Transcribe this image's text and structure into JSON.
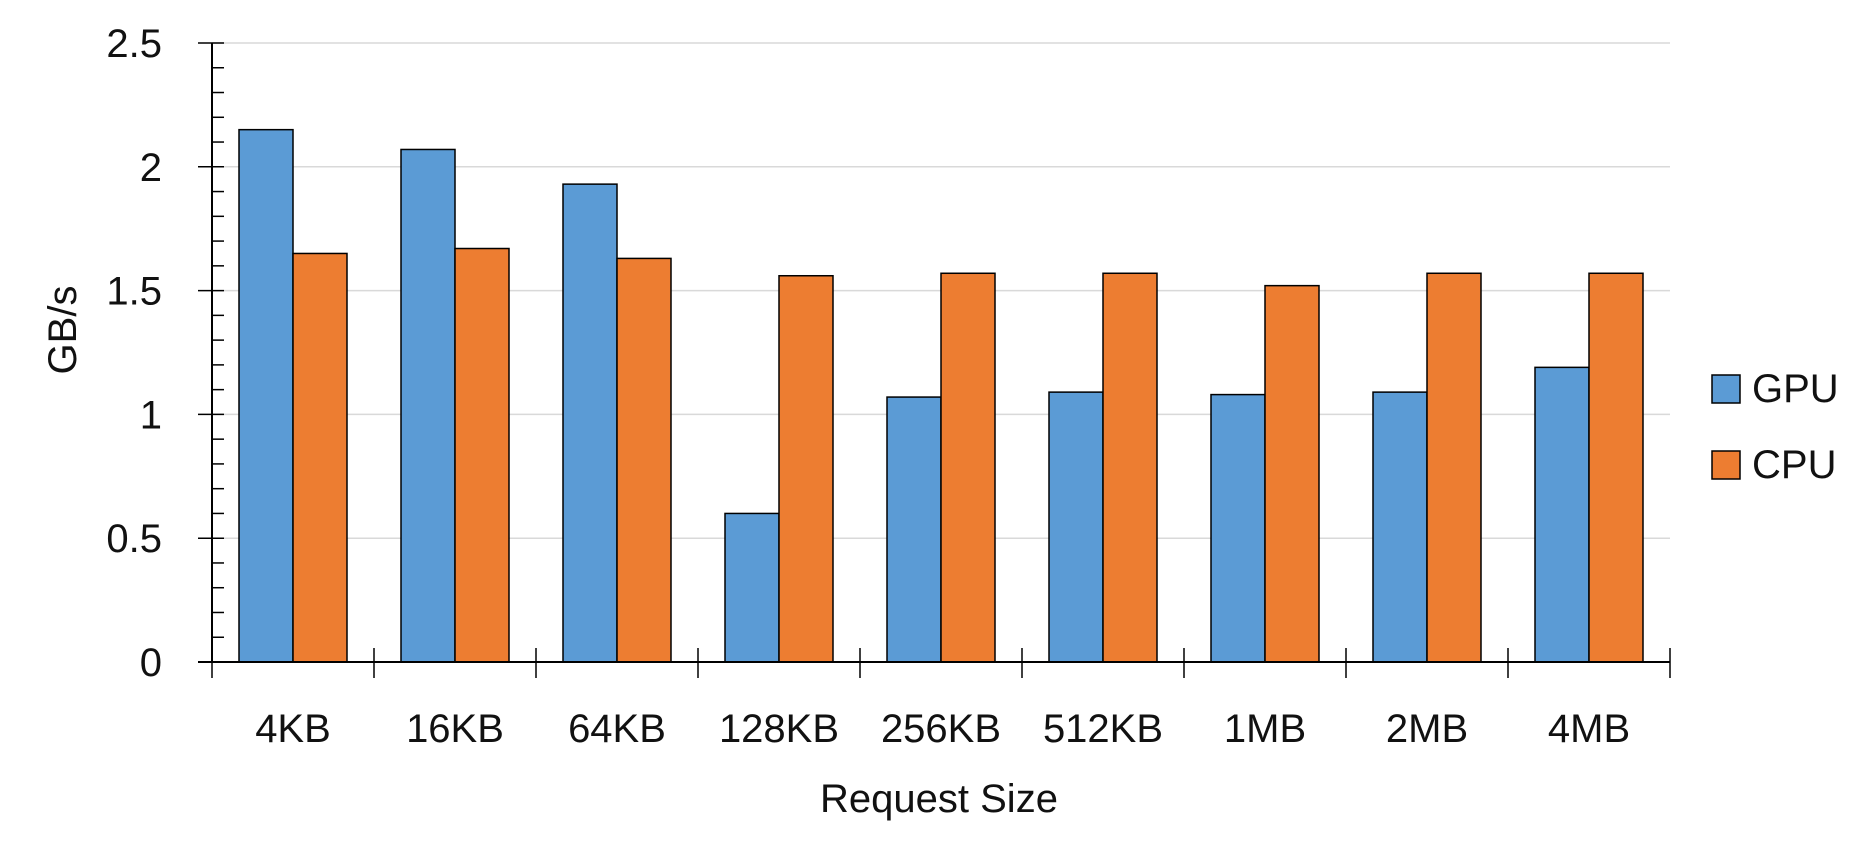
{
  "chart_data": {
    "type": "bar",
    "title": "",
    "xlabel": "Request Size",
    "ylabel": "GB/s",
    "categories": [
      "4KB",
      "16KB",
      "64KB",
      "128KB",
      "256KB",
      "512KB",
      "1MB",
      "2MB",
      "4MB"
    ],
    "series": [
      {
        "name": "GPU",
        "color": "#5B9BD5",
        "values": [
          2.15,
          2.07,
          1.93,
          0.6,
          1.07,
          1.09,
          1.08,
          1.09,
          1.19
        ]
      },
      {
        "name": "CPU",
        "color": "#ED7D31",
        "values": [
          1.65,
          1.67,
          1.63,
          1.56,
          1.57,
          1.57,
          1.52,
          1.57,
          1.57
        ]
      }
    ],
    "ylim": [
      0,
      2.5
    ],
    "yticks": [
      "0",
      "0.5",
      "1",
      "1.5",
      "2",
      "2.5"
    ],
    "grid": true,
    "legend_position": "right"
  }
}
